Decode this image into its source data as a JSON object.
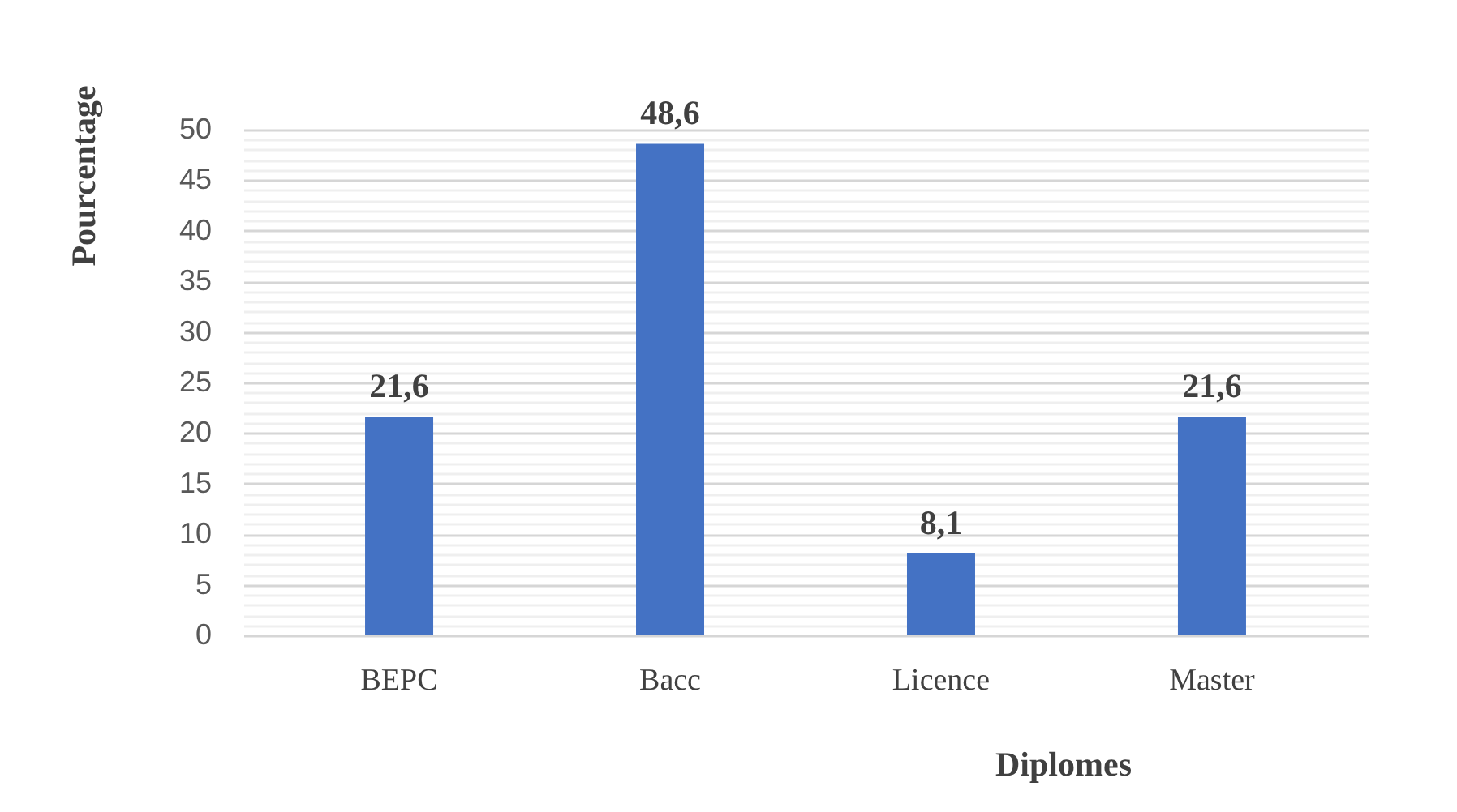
{
  "chart_data": {
    "type": "bar",
    "xlabel": "Diplomes",
    "ylabel": "Pourcentage",
    "categories": [
      "BEPC",
      "Bacc",
      "Licence",
      "Master"
    ],
    "values": [
      21.6,
      48.6,
      8.1,
      21.6
    ],
    "value_labels": [
      "21,6",
      "48,6",
      "8,1",
      "21,6"
    ],
    "color": "#4472c4",
    "ylim": [
      0,
      50
    ],
    "yticks": [
      0,
      {
        "value": 1,
        "label": null
      },
      {
        "value": 2,
        "label": null
      },
      {
        "value": 3,
        "label": null
      },
      {
        "value": 4,
        "label": null
      },
      5,
      {
        "value": 6,
        "label": null
      },
      {
        "value": 7,
        "label": null
      },
      {
        "value": 8,
        "label": null
      },
      {
        "value": 9,
        "label": null
      },
      10,
      {
        "value": 11,
        "label": null
      },
      {
        "value": 12,
        "label": null
      },
      {
        "value": 13,
        "label": null
      },
      {
        "value": 14,
        "label": null
      },
      15,
      {
        "value": 16,
        "label": null
      },
      {
        "value": 17,
        "label": null
      },
      {
        "value": 18,
        "label": null
      },
      {
        "value": 19,
        "label": null
      },
      20,
      {
        "value": 21,
        "label": null
      },
      {
        "value": 22,
        "label": null
      },
      {
        "value": 23,
        "label": null
      },
      {
        "value": 24,
        "label": null
      },
      25,
      {
        "value": 26,
        "label": null
      },
      {
        "value": 27,
        "label": null
      },
      {
        "value": 28,
        "label": null
      },
      {
        "value": 29,
        "label": null
      },
      30,
      {
        "value": 31,
        "label": null
      },
      {
        "value": 32,
        "label": null
      },
      {
        "value": 33,
        "label": null
      },
      {
        "value": 34,
        "label": null
      },
      35,
      {
        "value": 36,
        "label": null
      },
      {
        "value": 37,
        "label": null
      },
      {
        "value": 38,
        "label": null
      },
      {
        "value": 39,
        "label": null
      },
      40,
      {
        "value": 41,
        "label": null
      },
      {
        "value": 42,
        "label": null
      },
      {
        "value": 43,
        "label": null
      },
      {
        "value": 44,
        "label": null
      },
      45,
      {
        "value": 46,
        "label": null
      },
      {
        "value": 47,
        "label": null
      },
      {
        "value": 48,
        "label": null
      },
      {
        "value": 49,
        "label": null
      },
      50
    ],
    "grid": "y"
  }
}
